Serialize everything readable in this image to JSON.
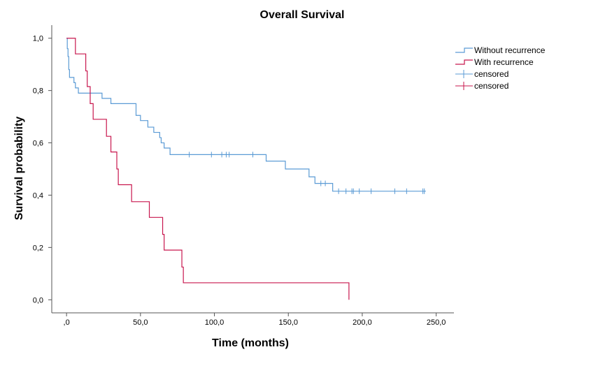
{
  "chart_data": {
    "type": "line",
    "title": "Overall Survival",
    "xlabel": "Time (months)",
    "ylabel": "Survival probability",
    "xlim": [
      -10,
      262
    ],
    "ylim": [
      -0.05,
      1.05
    ],
    "x_ticks": [
      0,
      50,
      100,
      150,
      200,
      250
    ],
    "x_tick_labels": [
      ",0",
      "50,0",
      "100,0",
      "150,0",
      "200,0",
      "250,0"
    ],
    "y_ticks": [
      0,
      0.2,
      0.4,
      0.6,
      0.8,
      1.0
    ],
    "y_tick_labels": [
      "0,0",
      "0,2",
      "0,4",
      "0,6",
      "0,8",
      "1,0"
    ],
    "grid": false,
    "legend_position": "top-right",
    "series": [
      {
        "name": "Without recurrence",
        "color": "#5b9bd5",
        "step": [
          [
            0,
            1.0
          ],
          [
            0.5,
            0.96
          ],
          [
            1,
            0.93
          ],
          [
            1.5,
            0.88
          ],
          [
            2,
            0.85
          ],
          [
            5,
            0.83
          ],
          [
            6,
            0.81
          ],
          [
            8,
            0.79
          ],
          [
            24,
            0.77
          ],
          [
            30,
            0.75
          ],
          [
            47,
            0.705
          ],
          [
            50,
            0.685
          ],
          [
            55,
            0.66
          ],
          [
            59,
            0.64
          ],
          [
            63,
            0.62
          ],
          [
            64,
            0.6
          ],
          [
            66,
            0.58
          ],
          [
            70,
            0.555
          ],
          [
            135,
            0.53
          ],
          [
            148,
            0.5
          ],
          [
            164,
            0.47
          ],
          [
            168,
            0.445
          ],
          [
            180,
            0.415
          ],
          [
            243,
            0.415
          ]
        ],
        "end_x": 243,
        "censored": [
          [
            83,
            0.555
          ],
          [
            98,
            0.555
          ],
          [
            105,
            0.555
          ],
          [
            108,
            0.555
          ],
          [
            110,
            0.555
          ],
          [
            126,
            0.555
          ],
          [
            172,
            0.445
          ],
          [
            175,
            0.445
          ],
          [
            184,
            0.415
          ],
          [
            189,
            0.415
          ],
          [
            193,
            0.415
          ],
          [
            194,
            0.415
          ],
          [
            198,
            0.415
          ],
          [
            206,
            0.415
          ],
          [
            222,
            0.415
          ],
          [
            230,
            0.415
          ],
          [
            241,
            0.415
          ],
          [
            242,
            0.415
          ]
        ],
        "censored_label": "censored"
      },
      {
        "name": "With recurrence",
        "color": "#c8174e",
        "step": [
          [
            0,
            1.0
          ],
          [
            6,
            0.94
          ],
          [
            13,
            0.875
          ],
          [
            14,
            0.815
          ],
          [
            16,
            0.75
          ],
          [
            18,
            0.69
          ],
          [
            27,
            0.625
          ],
          [
            30,
            0.565
          ],
          [
            34,
            0.5
          ],
          [
            35,
            0.44
          ],
          [
            44,
            0.375
          ],
          [
            56,
            0.315
          ],
          [
            65,
            0.25
          ],
          [
            66,
            0.19
          ],
          [
            78,
            0.125
          ],
          [
            79,
            0.065
          ],
          [
            191,
            0.0
          ]
        ],
        "end_x": 191,
        "censored": [],
        "censored_label": "censored"
      }
    ]
  }
}
